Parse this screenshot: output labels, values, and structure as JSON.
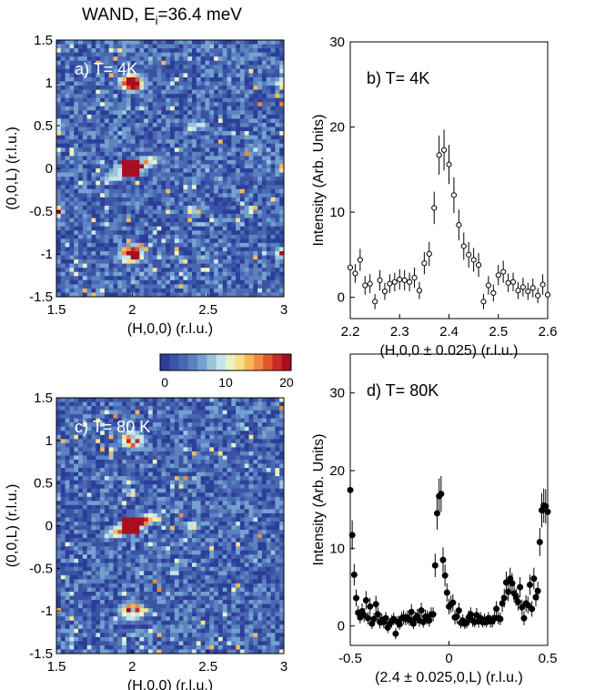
{
  "figure_title": {
    "prefix": "WAND, E",
    "subscript": "i",
    "suffix": "=36.4 meV"
  },
  "colors": {
    "frame": "#000000",
    "marker": "#000000"
  },
  "colorbar": {
    "ticks": [
      "0",
      "10",
      "20"
    ],
    "range": [
      0,
      20
    ],
    "colors": [
      "#2b3e98",
      "#3b53a5",
      "#4a69b2",
      "#5c82c0",
      "#74a1cf",
      "#9cc3de",
      "#c7e4ea",
      "#ecf2c5",
      "#f8e08a",
      "#f7b85a",
      "#ef8940",
      "#e0582e",
      "#c72b26",
      "#a70f20"
    ]
  },
  "chart_data": [
    {
      "id": "a",
      "type": "heatmap",
      "label": "a) T= 4K",
      "xlabel": "(H,0,0) (r.l.u.)",
      "ylabel": "(0,0,L) (r.l.u.)",
      "xlim": [
        1.5,
        3
      ],
      "ylim": [
        -1.5,
        1.5
      ],
      "xticks": [
        "1.5",
        "2",
        "2.5",
        "3"
      ],
      "yticks": [
        "1.5",
        "1",
        "0.5",
        "0",
        "-0.5",
        "-1",
        "-1.5"
      ],
      "features": [
        {
          "h": 2.0,
          "l": 0.0,
          "value": 20,
          "shape": "streak"
        },
        {
          "h": 2.0,
          "l": 1.0,
          "value": 20,
          "shape": "blob"
        },
        {
          "h": 2.0,
          "l": -1.0,
          "value": 20,
          "shape": "blob"
        },
        {
          "h": 2.4,
          "l": 0.5,
          "value": 14,
          "shape": "spot"
        },
        {
          "h": 2.4,
          "l": -0.5,
          "value": 14,
          "shape": "spot"
        },
        {
          "h": 1.5,
          "l": 0.5,
          "value": 16,
          "shape": "edge"
        },
        {
          "h": 1.5,
          "l": -0.5,
          "value": 16,
          "shape": "edge"
        },
        {
          "h": 3.0,
          "l": 1.0,
          "value": 20,
          "shape": "edge"
        },
        {
          "h": 3.0,
          "l": -1.0,
          "value": 20,
          "shape": "edge"
        },
        {
          "h": 3.0,
          "l": 0.0,
          "value": 12,
          "shape": "edge"
        }
      ]
    },
    {
      "id": "b",
      "type": "scatter",
      "label": "b) T= 4K",
      "xlabel": "(H,0,0 ± 0.025) (r.l.u.)",
      "ylabel": "Intensity (Arb. Units)",
      "xlim": [
        2.2,
        2.6
      ],
      "ylim": [
        -2.5,
        30
      ],
      "xticks": [
        "2.2",
        "2.3",
        "2.4",
        "2.5",
        "2.6"
      ],
      "yticks": [
        "0",
        "10",
        "20",
        "30"
      ],
      "marker": "open-circle",
      "x": [
        2.2,
        2.21,
        2.22,
        2.23,
        2.24,
        2.25,
        2.26,
        2.27,
        2.28,
        2.29,
        2.3,
        2.31,
        2.32,
        2.33,
        2.34,
        2.35,
        2.36,
        2.37,
        2.38,
        2.39,
        2.4,
        2.41,
        2.42,
        2.43,
        2.44,
        2.45,
        2.46,
        2.47,
        2.48,
        2.49,
        2.5,
        2.51,
        2.52,
        2.53,
        2.54,
        2.55,
        2.56,
        2.57,
        2.58,
        2.59,
        2.6
      ],
      "y": [
        3.5,
        2.8,
        4.4,
        1.4,
        1.6,
        -0.5,
        2.0,
        0.7,
        1.6,
        1.8,
        2.1,
        2.0,
        1.8,
        2.3,
        0.8,
        4.0,
        5.1,
        10.5,
        16.7,
        17.3,
        15.6,
        12.0,
        8.5,
        6.0,
        5.0,
        4.4,
        3.8,
        -0.5,
        1.4,
        0.5,
        2.6,
        3.0,
        1.7,
        1.8,
        0.8,
        1.2,
        0.7,
        1.1,
        0.2,
        1.5,
        0.3
      ],
      "err": [
        1.2,
        1.1,
        1.3,
        1.1,
        1.1,
        0.9,
        1.2,
        1.0,
        1.1,
        1.1,
        1.2,
        1.2,
        1.1,
        1.2,
        1.0,
        1.3,
        1.4,
        1.9,
        2.3,
        2.4,
        2.3,
        2.1,
        1.8,
        1.6,
        1.5,
        1.4,
        1.4,
        0.9,
        1.1,
        1.0,
        1.2,
        1.3,
        1.1,
        1.1,
        1.0,
        1.1,
        1.0,
        1.1,
        0.9,
        1.2,
        0.9
      ]
    },
    {
      "id": "c",
      "type": "heatmap",
      "label": "c) T= 80 K",
      "xlabel": "(H,0,0) (r.l.u.)",
      "ylabel": "(0,0,L) (r.l.u.)",
      "xlim": [
        1.5,
        3
      ],
      "ylim": [
        -1.5,
        1.5
      ],
      "xticks": [
        "1.5",
        "2",
        "2.5",
        "3"
      ],
      "yticks": [
        "1.5",
        "1",
        "0.5",
        "0",
        "-0.5",
        "-1",
        "-1.5"
      ],
      "features": [
        {
          "h": 2.0,
          "l": 0.0,
          "value": 20,
          "shape": "streak"
        },
        {
          "h": 2.0,
          "l": 1.0,
          "value": 16,
          "shape": "blob"
        },
        {
          "h": 2.0,
          "l": -1.0,
          "value": 17,
          "shape": "blob"
        },
        {
          "h": 2.4,
          "l": 0.0,
          "value": 10,
          "shape": "spot"
        },
        {
          "h": 3.0,
          "l": 0.5,
          "value": 8,
          "shape": "edge"
        }
      ]
    },
    {
      "id": "d",
      "type": "scatter",
      "label": "d) T= 80K",
      "xlabel": "(2.4 ± 0.025,0,L) (r.l.u.)",
      "ylabel": "Intensity (Arb. Units)",
      "xlim": [
        -0.5,
        0.5
      ],
      "ylim": [
        -2.5,
        35
      ],
      "xticks": [
        "-0.5",
        "0",
        "0.5"
      ],
      "yticks": [
        "0",
        "10",
        "20",
        "30"
      ],
      "marker": "filled-circle",
      "x": [
        -0.5,
        -0.49,
        -0.48,
        -0.47,
        -0.46,
        -0.45,
        -0.44,
        -0.43,
        -0.42,
        -0.41,
        -0.4,
        -0.39,
        -0.38,
        -0.37,
        -0.36,
        -0.35,
        -0.34,
        -0.33,
        -0.32,
        -0.31,
        -0.3,
        -0.29,
        -0.28,
        -0.27,
        -0.26,
        -0.25,
        -0.24,
        -0.23,
        -0.22,
        -0.21,
        -0.2,
        -0.19,
        -0.18,
        -0.17,
        -0.16,
        -0.15,
        -0.14,
        -0.13,
        -0.12,
        -0.11,
        -0.1,
        -0.09,
        -0.08,
        -0.07,
        -0.06,
        -0.05,
        -0.04,
        -0.03,
        -0.02,
        -0.01,
        0.0,
        0.01,
        0.02,
        0.03,
        0.04,
        0.05,
        0.06,
        0.07,
        0.08,
        0.09,
        0.1,
        0.11,
        0.12,
        0.13,
        0.14,
        0.15,
        0.16,
        0.17,
        0.18,
        0.19,
        0.2,
        0.21,
        0.22,
        0.23,
        0.24,
        0.25,
        0.26,
        0.27,
        0.28,
        0.29,
        0.3,
        0.31,
        0.32,
        0.33,
        0.34,
        0.35,
        0.36,
        0.37,
        0.38,
        0.39,
        0.4,
        0.41,
        0.42,
        0.43,
        0.44,
        0.45,
        0.46,
        0.47,
        0.48,
        0.49,
        0.5
      ],
      "y": [
        17.5,
        11.7,
        6.6,
        3.6,
        1.7,
        1.1,
        1.9,
        1.4,
        3.3,
        1.0,
        2.5,
        0.3,
        0.9,
        2.8,
        1.5,
        0.5,
        0.8,
        0.5,
        1.0,
        -0.2,
        0.3,
        0.6,
        0.9,
        -1.0,
        0.5,
        0.2,
        1.0,
        1.1,
        0.9,
        1.1,
        0.8,
        1.8,
        0.3,
        1.0,
        1.3,
        0.7,
        2.0,
        0.5,
        1.2,
        1.1,
        0.7,
        1.5,
        1.5,
        7.8,
        14.5,
        16.7,
        17.0,
        8.5,
        6.5,
        4.3,
        2.5,
        2.8,
        3.0,
        1.1,
        1.2,
        2.0,
        0.4,
        0.7,
        0.3,
        0.4,
        1.1,
        1.5,
        0.7,
        0.5,
        1.4,
        0.6,
        1.0,
        0.5,
        0.8,
        0.5,
        1.0,
        0.6,
        0.6,
        1.0,
        2.2,
        1.0,
        0.9,
        2.9,
        3.6,
        5.6,
        4.4,
        6.1,
        5.5,
        4.2,
        3.7,
        3.1,
        5.0,
        2.4,
        1.0,
        2.9,
        2.7,
        5.3,
        2.2,
        6.1,
        3.7,
        4.5,
        10.8,
        14.9,
        15.5,
        15.4,
        14.7
      ],
      "err": [
        2.3,
        1.9,
        1.4,
        1.1,
        0.9,
        0.8,
        1.0,
        0.9,
        1.2,
        0.8,
        1.1,
        0.7,
        0.8,
        1.1,
        0.9,
        0.8,
        0.8,
        0.8,
        0.8,
        0.7,
        0.7,
        0.8,
        0.8,
        0.7,
        0.8,
        0.7,
        0.8,
        0.9,
        0.8,
        0.9,
        0.8,
        1.0,
        0.7,
        0.8,
        0.9,
        0.8,
        1.0,
        0.7,
        0.9,
        0.9,
        0.8,
        0.9,
        0.9,
        1.5,
        2.1,
        2.3,
        2.3,
        1.6,
        1.4,
        1.2,
        1.0,
        1.1,
        1.1,
        0.9,
        0.9,
        1.0,
        0.7,
        0.8,
        0.7,
        0.7,
        0.9,
        0.9,
        0.8,
        0.7,
        0.9,
        0.8,
        0.8,
        0.7,
        0.8,
        0.7,
        0.8,
        0.8,
        0.8,
        0.8,
        1.0,
        0.8,
        0.8,
        1.1,
        1.2,
        1.4,
        1.2,
        1.4,
        1.3,
        1.2,
        1.1,
        1.1,
        1.3,
        1.0,
        0.9,
        1.1,
        1.1,
        1.3,
        1.0,
        1.4,
        1.2,
        1.2,
        1.8,
        2.2,
        2.2,
        2.2,
        2.1
      ]
    }
  ]
}
